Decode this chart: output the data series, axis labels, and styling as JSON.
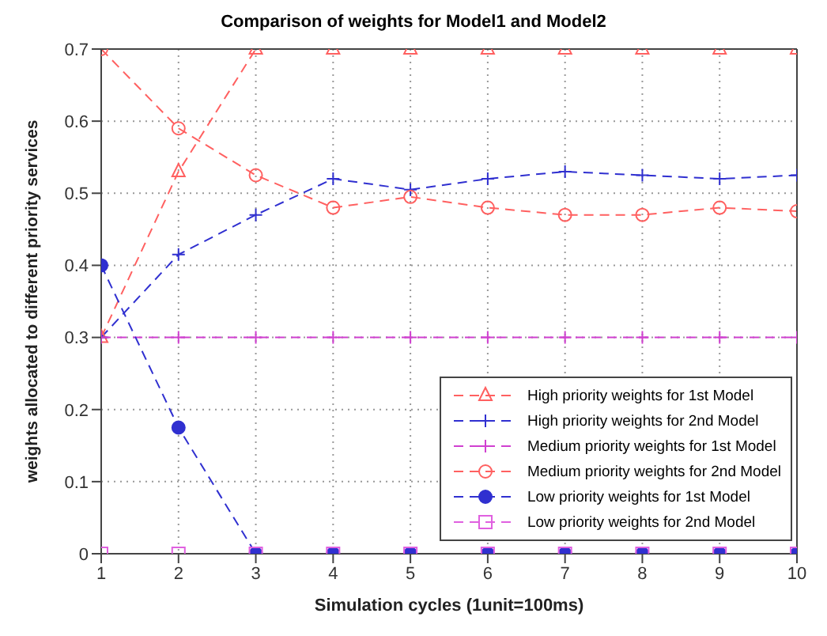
{
  "chart_data": {
    "type": "line",
    "title": "Comparison of weights for Model1 and Model2",
    "xlabel": "Simulation cycles (1unit=100ms)",
    "ylabel": "weights allocated to different priority services",
    "x": [
      1,
      2,
      3,
      4,
      5,
      6,
      7,
      8,
      9,
      10
    ],
    "series": [
      {
        "name": "High priority weights for 1st Model",
        "color": "#ff6060",
        "marker": "triangle",
        "values": [
          0.3,
          0.53,
          0.7,
          0.7,
          0.7,
          0.7,
          0.7,
          0.7,
          0.7,
          0.7
        ]
      },
      {
        "name": "High priority weights for 2nd Model",
        "color": "#3030d0",
        "marker": "cross",
        "values": [
          0.3,
          0.415,
          0.47,
          0.52,
          0.505,
          0.52,
          0.53,
          0.525,
          0.52,
          0.525
        ]
      },
      {
        "name": "Medium priority weights for 1st Model",
        "color": "#d040d0",
        "marker": "cross",
        "values": [
          0.3,
          0.3,
          0.3,
          0.3,
          0.3,
          0.3,
          0.3,
          0.3,
          0.3,
          0.3
        ]
      },
      {
        "name": "Medium priority weights for 2nd Model",
        "color": "#ff6060",
        "marker": "circle",
        "values": [
          0.7,
          0.59,
          0.525,
          0.48,
          0.495,
          0.48,
          0.47,
          0.47,
          0.48,
          0.475
        ]
      },
      {
        "name": "Low priority weights for 1st Model",
        "color": "#3030d0",
        "marker": "circle",
        "values": [
          0.4,
          0.175,
          0,
          0,
          0,
          0,
          0,
          0,
          0,
          0
        ]
      },
      {
        "name": "Low priority weights for 2nd Model",
        "color": "#e060e0",
        "marker": "square",
        "values": [
          0,
          0,
          0,
          0,
          0,
          0,
          0,
          0,
          0,
          0
        ]
      }
    ],
    "xlim": [
      1,
      10
    ],
    "xticks": [
      1,
      2,
      3,
      4,
      5,
      6,
      7,
      8,
      9,
      10
    ],
    "ylim": [
      0,
      0.7
    ],
    "yticks": [
      0,
      0.1,
      0.2,
      0.3,
      0.4,
      0.5,
      0.6,
      0.7
    ],
    "grid": true,
    "legend": "bottom right",
    "line_style": "dashed"
  }
}
